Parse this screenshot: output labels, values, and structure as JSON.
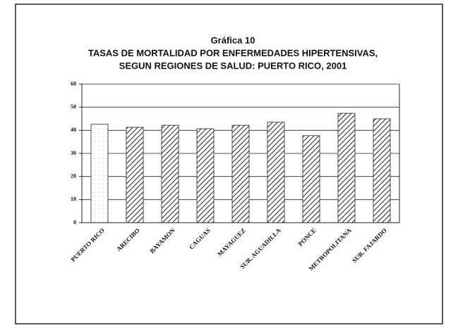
{
  "chart_data": {
    "type": "bar",
    "title": "Gráfica 10",
    "subtitle": "TASAS DE MORTALIDAD POR ENFERMEDADES HIPERTENSIVAS,",
    "subtitle2": "SEGUN REGIONES DE SALUD: PUERTO RICO, 2001",
    "categories": [
      "PUERTO RICO",
      "ARECIBO",
      "BAYAMON",
      "CAGUAS",
      "MAYAGUEZ",
      "SUR. AGUADILLA",
      "PONCE",
      "METROPOLITANA",
      "SUR. FAJARDO"
    ],
    "values": [
      42.6,
      41.3,
      42.2,
      40.7,
      42.2,
      43.5,
      37.7,
      47.4,
      45.0
    ],
    "fills": [
      "dots",
      "hatch",
      "hatch",
      "hatch",
      "hatch",
      "hatch",
      "hatch",
      "hatch",
      "hatch"
    ],
    "ylim": [
      0,
      60
    ],
    "yticks": [
      0,
      10,
      20,
      30,
      40,
      50,
      60
    ],
    "grid": true
  }
}
